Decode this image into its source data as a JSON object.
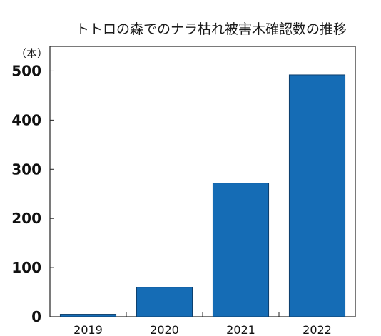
{
  "chart_data": {
    "type": "bar",
    "title": "トトロの森でのナラ枯れ被害木確認数の推移",
    "unit_label": "（本）",
    "xlabel": "",
    "ylabel": "",
    "categories": [
      "2019",
      "2020",
      "2021",
      "2022"
    ],
    "values": [
      5,
      60,
      272,
      492
    ],
    "ylim": [
      0,
      550
    ],
    "yticks": [
      0,
      100,
      200,
      300,
      400,
      500
    ],
    "grid": false,
    "legend": "none",
    "bar_color": "#156cb5",
    "bar_edge_color": "#0d3e6b"
  }
}
